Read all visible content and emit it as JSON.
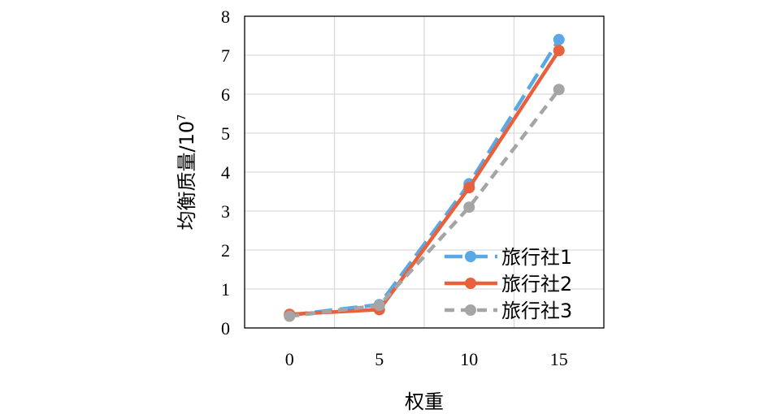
{
  "chart_data": {
    "type": "line",
    "x": [
      0,
      5,
      10,
      15
    ],
    "xlabel": "权重",
    "ylabel": "均衡质量/10",
    "ylabel_superscript": "7",
    "xlim": [
      -2.5,
      17.5
    ],
    "ylim": [
      0,
      8
    ],
    "xticks": [
      "0",
      "5",
      "10",
      "15"
    ],
    "yticks": [
      "0",
      "1",
      "2",
      "3",
      "4",
      "5",
      "6",
      "7",
      "8"
    ],
    "grid": true,
    "legend_position": "right",
    "series": [
      {
        "name": "旅行社1",
        "values": [
          0.33,
          0.6,
          3.7,
          7.4
        ],
        "color": "#5aa9e6",
        "dash": "long-dash"
      },
      {
        "name": "旅行社2",
        "values": [
          0.35,
          0.47,
          3.6,
          7.12
        ],
        "color": "#e8603c",
        "dash": "solid"
      },
      {
        "name": "旅行社3",
        "values": [
          0.3,
          0.58,
          3.1,
          6.12
        ],
        "color": "#a5a5a5",
        "dash": "dash"
      }
    ]
  }
}
